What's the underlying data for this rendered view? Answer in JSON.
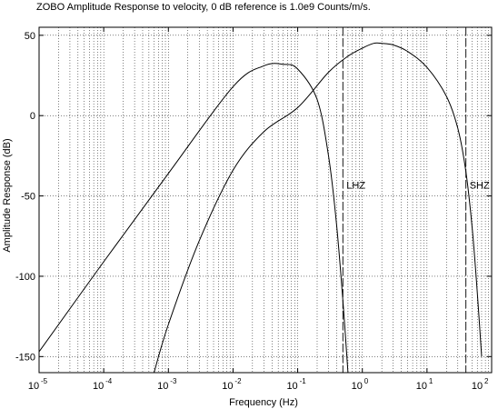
{
  "chart_data": {
    "type": "line",
    "title": "ZOBO Amplitude Response to velocity, 0 dB reference is 1.0e9 Counts/m/s.",
    "xlabel": "Frequency (Hz)",
    "ylabel": "Amplitude Response (dB)",
    "x_scale": "log",
    "xlim": [
      1e-05,
      100
    ],
    "ylim": [
      -160,
      55
    ],
    "grid": true,
    "x_ticks": [
      {
        "base": "10",
        "exp": "-5",
        "value": 1e-05
      },
      {
        "base": "10",
        "exp": "-4",
        "value": 0.0001
      },
      {
        "base": "10",
        "exp": "-3",
        "value": 0.001
      },
      {
        "base": "10",
        "exp": "-2",
        "value": 0.01
      },
      {
        "base": "10",
        "exp": "-1",
        "value": 0.1
      },
      {
        "base": "10",
        "exp": "0",
        "value": 1
      },
      {
        "base": "10",
        "exp": "1",
        "value": 10
      },
      {
        "base": "10",
        "exp": "2",
        "value": 100
      }
    ],
    "y_ticks": [
      {
        "label": "50",
        "value": 50
      },
      {
        "label": "0",
        "value": 0
      },
      {
        "label": "-50",
        "value": -50
      },
      {
        "label": "-100",
        "value": -100
      },
      {
        "label": "-150",
        "value": -150
      }
    ],
    "series": [
      {
        "x": [
          1e-05,
          0.0001,
          0.001,
          0.01,
          0.03,
          0.06,
          0.1,
          0.2,
          0.3,
          0.4,
          0.5,
          0.6
        ],
        "y": [
          -147,
          -91,
          -36,
          18,
          31,
          32,
          29,
          10,
          -25,
          -68,
          -115,
          -160
        ]
      },
      {
        "x": [
          0.0006,
          0.001,
          0.003,
          0.01,
          0.03,
          0.1,
          0.3,
          0.6,
          1,
          1.5,
          2,
          3,
          5,
          10,
          20,
          30,
          40,
          50,
          60,
          70
        ],
        "y": [
          -160,
          -130,
          -78,
          -34,
          -10,
          5,
          27,
          37,
          42,
          45,
          45,
          44,
          40,
          30,
          12,
          -8,
          -35,
          -70,
          -110,
          -150
        ]
      }
    ],
    "reference_lines": [
      {
        "label": "LHZ",
        "x": 0.5
      },
      {
        "label": "SHZ",
        "x": 40
      }
    ]
  }
}
